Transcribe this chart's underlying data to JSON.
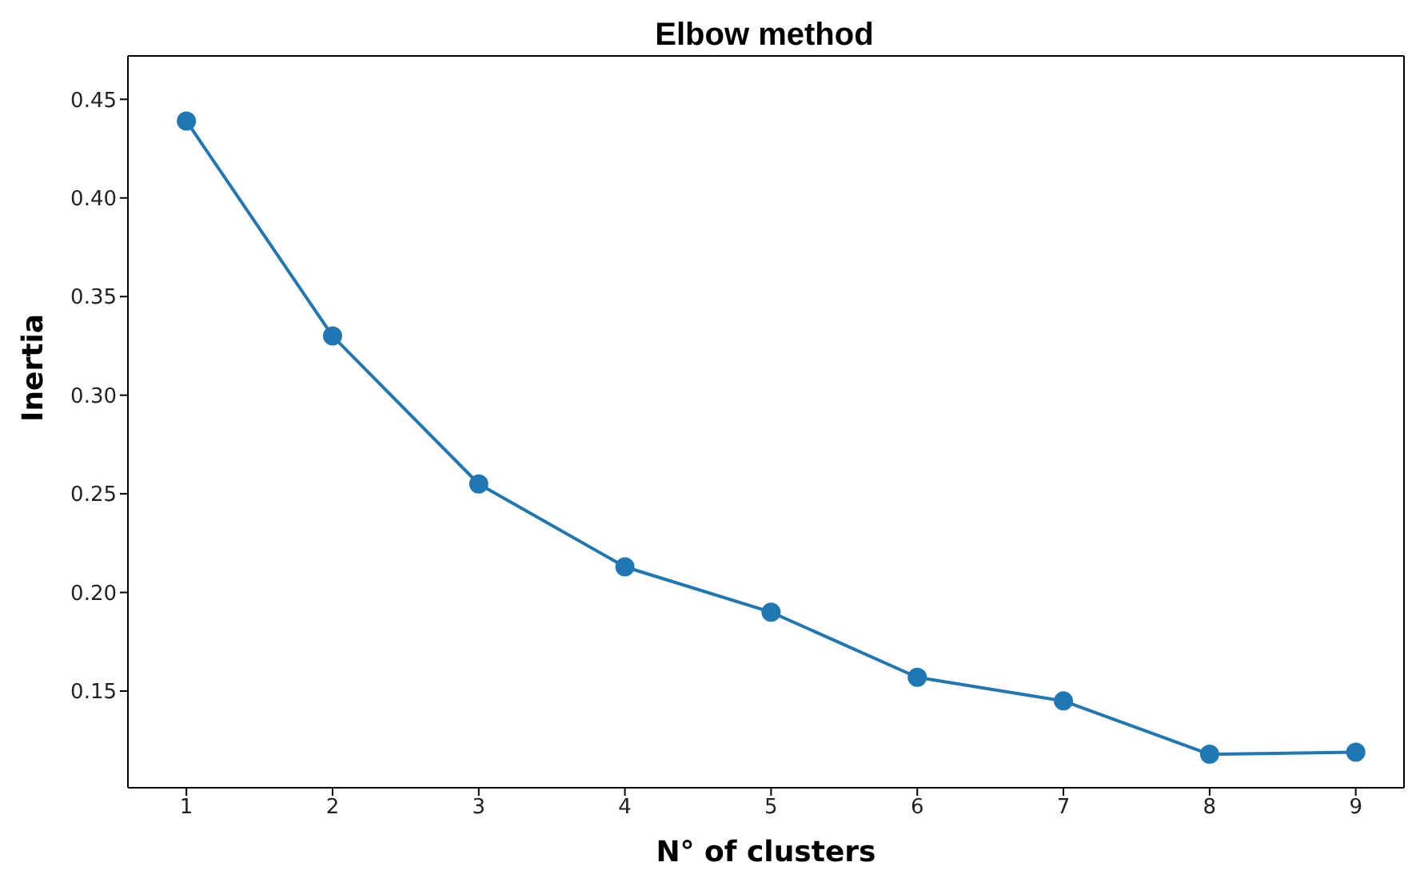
{
  "chart_data": {
    "type": "line",
    "title": "Elbow method",
    "xlabel": "N° of clusters",
    "ylabel": "Inertia",
    "x": [
      1,
      2,
      3,
      4,
      5,
      6,
      7,
      8,
      9
    ],
    "series": [
      {
        "color": "#1f77b4",
        "values": [
          0.439,
          0.33,
          0.255,
          0.213,
          0.19,
          0.157,
          0.145,
          0.118,
          0.119
        ]
      }
    ],
    "xlim": [
      0.6,
      9.33
    ],
    "xticks": [
      1,
      2,
      3,
      4,
      5,
      6,
      7,
      8,
      9
    ],
    "ylim": [
      0.101,
      0.472
    ],
    "yticks": [
      0.15,
      {
        "value": 0.2,
        "label": "0.20"
      },
      0.25,
      {
        "value": 0.3,
        "label": "0.30"
      },
      0.35,
      {
        "value": 0.4,
        "label": "0.40"
      },
      0.45
    ],
    "marker": "circle",
    "line_style": "solid",
    "grid": false,
    "legend": false
  }
}
